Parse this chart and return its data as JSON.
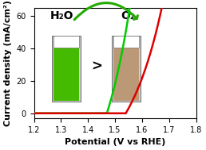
{
  "xlim": [
    1.2,
    1.8
  ],
  "ylim": [
    -3,
    65
  ],
  "xlabel": "Potential (V vs RHE)",
  "ylabel": "Current density (mA/cm²)",
  "xticks": [
    1.2,
    1.3,
    1.4,
    1.5,
    1.6,
    1.7,
    1.8
  ],
  "yticks": [
    0,
    20,
    40,
    60
  ],
  "green_onset": 1.47,
  "red_onset": 1.54,
  "green_color": "#00cc00",
  "red_color": "#dd0000",
  "h2o_label": "H₂O",
  "o2_label": "O₂",
  "greater_sign": ">",
  "arrow_color": "#22aa00",
  "xlabel_fontsize": 8,
  "ylabel_fontsize": 8,
  "tick_fontsize": 7,
  "label_fontsize": 10,
  "vial_left_color": "#44bb00",
  "vial_right_color": "#bb9977",
  "vial_cap_color": "#ffffff",
  "vial_bg_color": "#bbbbbb"
}
